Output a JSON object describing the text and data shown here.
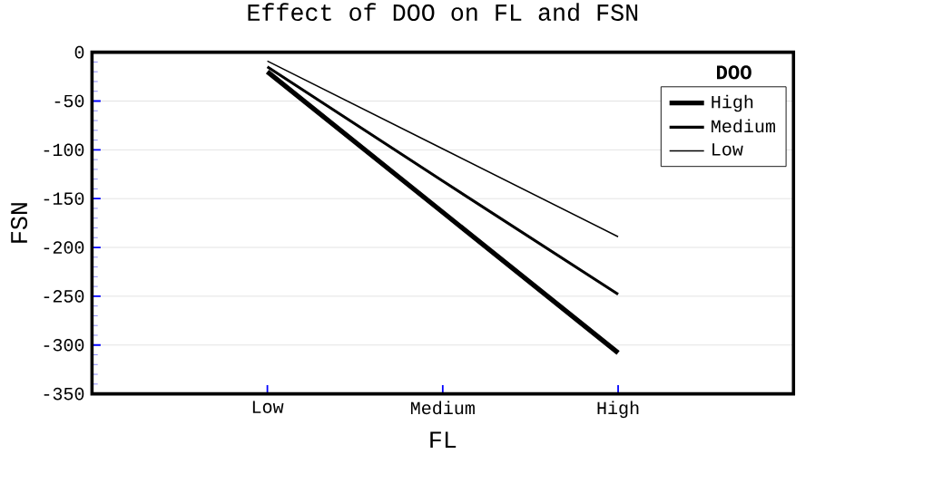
{
  "chart_data": {
    "type": "line",
    "title": "Effect of DOO on FL and FSN",
    "xlabel": "FL",
    "ylabel": "FSN",
    "legend_title": "DOO",
    "categories": [
      "Low",
      "Medium",
      "High"
    ],
    "series": [
      {
        "name": "High",
        "color": "#000000",
        "values": [
          -20,
          -164,
          -308
        ]
      },
      {
        "name": "Medium",
        "color": "#000000",
        "values": [
          -15,
          -132,
          -248
        ]
      },
      {
        "name": "Low",
        "color": "#000000",
        "values": [
          -9,
          -99,
          -189
        ]
      }
    ],
    "ylim": [
      -350,
      0
    ],
    "yticks": [
      -350,
      -300,
      -250,
      -200,
      -150,
      -100,
      -50,
      0
    ],
    "grid": "y",
    "legend": "top right",
    "line_style": "solid",
    "marker": "none"
  }
}
